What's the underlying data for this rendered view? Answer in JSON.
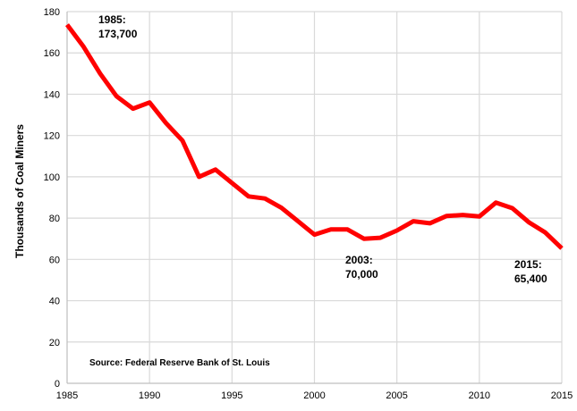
{
  "chart_data": {
    "type": "line",
    "title": "",
    "xlabel": "",
    "ylabel": "Thousands of Coal Miners",
    "xlim": [
      1985,
      2015
    ],
    "ylim": [
      0,
      180
    ],
    "x_ticks": [
      1985,
      1990,
      1995,
      2000,
      2005,
      2010,
      2015
    ],
    "y_ticks": [
      0,
      20,
      40,
      60,
      80,
      100,
      120,
      140,
      160,
      180
    ],
    "grid": true,
    "color": "#ff0000",
    "series": [
      {
        "x": [
          1985,
          1986,
          1987,
          1988,
          1989,
          1990,
          1991,
          1992,
          1993,
          1994,
          1995,
          1996,
          1997,
          1998,
          1999,
          2000,
          2001,
          2002,
          2003,
          2004,
          2005,
          2006,
          2007,
          2008,
          2009,
          2010,
          2011,
          2012,
          2013,
          2014,
          2015
        ],
        "values": [
          173.7,
          163,
          150,
          139,
          133,
          136,
          126,
          117.5,
          100,
          103.5,
          97,
          90.5,
          89.5,
          85,
          78.5,
          72,
          74.5,
          74.5,
          70,
          70.5,
          74,
          78.5,
          77.5,
          81,
          81.5,
          80.8,
          87.5,
          84.8,
          78,
          73,
          65.4
        ]
      }
    ],
    "annotations": [
      {
        "line1": "1985:",
        "line2": "173,700"
      },
      {
        "line1": "2003:",
        "line2": "70,000"
      },
      {
        "line1": "2015:",
        "line2": "65,400"
      }
    ],
    "source": "Source: Federal Reserve Bank of St. Louis"
  }
}
